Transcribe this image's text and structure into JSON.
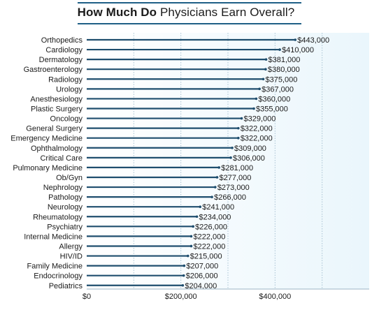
{
  "title": {
    "bold_part": "How Much Do",
    "rest_part": "Physicians Earn Overall?"
  },
  "colors": {
    "bar": "#1f4e6e",
    "plot_bg": "#eaf6fc",
    "grid": "#a9c3d3",
    "title_rule": "#1f5f86"
  },
  "chart_data": {
    "type": "bar",
    "orientation": "horizontal",
    "title": "How Much Do Physicians Earn Overall?",
    "categories": [
      "Orthopedics",
      "Cardiology",
      "Dermatology",
      "Gastroenterology",
      "Radiology",
      "Urology",
      "Anesthesiology",
      "Plastic Surgery",
      "Oncology",
      "General Surgery",
      "Emergency Medicine",
      "Ophthalmology",
      "Critical Care",
      "Pulmonary Medicine",
      "Ob/Gyn",
      "Nephrology",
      "Pathology",
      "Neurology",
      "Rheumatology",
      "Psychiatry",
      "Internal Medicine",
      "Allergy",
      "HIV/ID",
      "Family Medicine",
      "Endocrinology",
      "Pediatrics"
    ],
    "values": [
      443000,
      410000,
      381000,
      380000,
      375000,
      367000,
      360000,
      355000,
      329000,
      322000,
      322000,
      309000,
      306000,
      281000,
      277000,
      273000,
      266000,
      241000,
      234000,
      226000,
      222000,
      222000,
      215000,
      207000,
      206000,
      204000
    ],
    "value_labels": [
      "$443,000",
      "$410,000",
      "$381,000",
      "$380,000",
      "$375,000",
      "$367,000",
      "$360,000",
      "$355,000",
      "$329,000",
      "$322,000",
      "$322,000",
      "$309,000",
      "$306,000",
      "$281,000",
      "$277,000",
      "$273,000",
      "$266,000",
      "$241,000",
      "$234,000",
      "$226,000",
      "$222,000",
      "$222,000",
      "$215,000",
      "$207,000",
      "$206,000",
      "$204,000"
    ],
    "x_ticks": [
      {
        "value": 0,
        "label": "$0"
      },
      {
        "value": 200000,
        "label": "$200,000"
      },
      {
        "value": 400000,
        "label": "$400,000"
      }
    ],
    "xlim": [
      0,
      600000
    ],
    "grid": true,
    "xlabel": "",
    "ylabel": ""
  }
}
